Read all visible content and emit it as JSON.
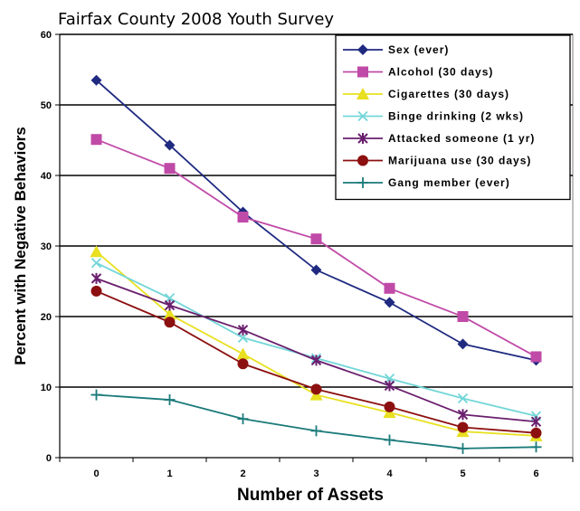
{
  "chart_data": {
    "type": "line",
    "title": "Fairfax County 2008 Youth Survey",
    "xlabel": "Number of Assets",
    "ylabel": "Percent with Negative Behaviors",
    "x": [
      0,
      1,
      2,
      3,
      4,
      5,
      6
    ],
    "x_tick_labels": [
      "0",
      "1",
      "2",
      "3",
      "4",
      "5",
      "6"
    ],
    "y_ticks": [
      0,
      10,
      20,
      30,
      40,
      50,
      60
    ],
    "y_tick_labels": [
      "0",
      "10",
      "20",
      "30",
      "40",
      "50",
      "60"
    ],
    "ylim": [
      0,
      60
    ],
    "grid": "horizontal",
    "legend_position": "top-right",
    "series": [
      {
        "name": "Sex (ever)",
        "color": "#1f2a80",
        "marker": "diamond",
        "values": [
          53.5,
          44.3,
          34.8,
          26.6,
          22.0,
          16.1,
          13.8
        ]
      },
      {
        "name": "Alcohol (30 days)",
        "color": "#c04aa8",
        "marker": "square",
        "values": [
          45.1,
          41.0,
          34.1,
          31.0,
          24.0,
          20.0,
          14.3
        ]
      },
      {
        "name": "Cigarettes (30 days)",
        "color": "#e8e020",
        "marker": "triangle",
        "values": [
          29.2,
          20.3,
          14.7,
          8.9,
          6.4,
          3.7,
          3.1
        ]
      },
      {
        "name": "Binge drinking (2 wks)",
        "color": "#72d6d8",
        "marker": "x",
        "values": [
          27.6,
          22.6,
          17.0,
          14.1,
          11.2,
          8.4,
          5.9
        ]
      },
      {
        "name": "Attacked someone (1 yr)",
        "color": "#6a1f6e",
        "marker": "star",
        "values": [
          25.4,
          21.6,
          18.1,
          13.8,
          10.2,
          6.1,
          5.1
        ]
      },
      {
        "name": "Marijuana use (30 days)",
        "color": "#8c1010",
        "marker": "circle",
        "values": [
          23.6,
          19.2,
          13.3,
          9.7,
          7.2,
          4.3,
          3.5
        ]
      },
      {
        "name": "Gang member (ever)",
        "color": "#1b7a7a",
        "marker": "plus",
        "values": [
          8.9,
          8.2,
          5.5,
          3.8,
          2.5,
          1.3,
          1.5
        ]
      }
    ]
  }
}
